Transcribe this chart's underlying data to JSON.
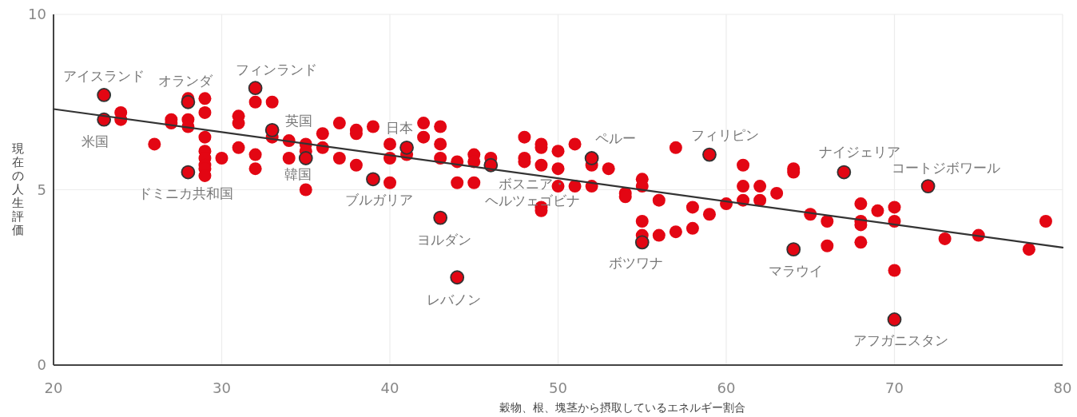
{
  "chart_data": {
    "type": "scatter",
    "xlabel": "穀物、根、塊茎から摂取しているエネルギー割合",
    "ylabel": "現在の人生評価",
    "xlim": [
      20,
      80
    ],
    "ylim": [
      0,
      10
    ],
    "xticks": [
      20,
      30,
      40,
      50,
      60,
      70,
      80
    ],
    "yticks": [
      0,
      5,
      10
    ],
    "grid": true,
    "marker": "circle",
    "series": [
      {
        "color": "#e30613",
        "x": [
          23,
          23,
          24,
          24,
          26,
          27,
          27,
          28,
          28,
          28,
          28,
          28,
          29,
          29,
          29,
          29,
          29,
          29,
          29,
          29,
          30,
          31,
          31,
          31,
          32,
          32,
          32,
          32,
          33,
          33,
          33,
          34,
          34,
          35,
          35,
          35,
          35,
          36,
          36,
          37,
          37,
          38,
          38,
          38,
          39,
          39,
          40,
          40,
          40,
          41,
          41,
          42,
          42,
          43,
          43,
          43,
          43,
          44,
          44,
          44,
          45,
          45,
          45,
          46,
          46,
          48,
          48,
          48,
          49,
          49,
          49,
          49,
          49,
          50,
          50,
          50,
          51,
          51,
          52,
          52,
          52,
          53,
          54,
          54,
          55,
          55,
          55,
          55,
          55,
          56,
          56,
          57,
          57,
          58,
          58,
          59,
          59,
          60,
          61,
          61,
          61,
          62,
          62,
          63,
          64,
          64,
          64,
          65,
          66,
          66,
          67,
          68,
          68,
          68,
          68,
          69,
          70,
          70,
          70,
          70,
          72,
          73,
          75,
          78,
          79
        ],
        "values": [
          7.7,
          7.0,
          7.2,
          7.0,
          6.3,
          7.0,
          6.9,
          7.6,
          7.5,
          7.0,
          6.8,
          5.5,
          7.6,
          7.2,
          6.5,
          6.1,
          5.9,
          5.7,
          5.6,
          5.4,
          5.9,
          7.1,
          6.9,
          6.2,
          7.9,
          7.5,
          6.0,
          5.6,
          7.5,
          6.7,
          6.5,
          6.4,
          5.9,
          6.3,
          6.1,
          5.9,
          5.0,
          6.6,
          6.2,
          6.9,
          5.9,
          6.7,
          6.6,
          5.7,
          6.8,
          5.3,
          6.3,
          5.9,
          5.2,
          6.2,
          6.0,
          6.9,
          6.5,
          6.8,
          6.3,
          5.9,
          4.2,
          5.8,
          5.2,
          2.5,
          6.0,
          5.8,
          5.2,
          5.9,
          5.7,
          6.5,
          5.9,
          5.8,
          6.3,
          6.2,
          5.7,
          4.5,
          4.4,
          6.1,
          5.6,
          5.1,
          6.3,
          5.1,
          5.9,
          5.7,
          5.1,
          5.6,
          4.9,
          4.8,
          5.3,
          5.1,
          4.1,
          3.7,
          3.5,
          4.7,
          3.7,
          6.2,
          3.8,
          4.5,
          3.9,
          6.0,
          4.3,
          4.6,
          5.7,
          5.1,
          4.7,
          5.1,
          4.7,
          4.9,
          5.6,
          5.5,
          3.3,
          4.3,
          4.1,
          3.4,
          5.5,
          4.6,
          4.1,
          4.0,
          3.5,
          4.4,
          4.5,
          4.1,
          2.7,
          1.3,
          5.1,
          3.6,
          3.7,
          3.3,
          4.1
        ]
      },
      {
        "type": "line",
        "color": "#333333",
        "marker": "none",
        "x": [
          20,
          80
        ],
        "values": [
          7.3,
          3.35
        ]
      }
    ],
    "annotations": [
      {
        "text": "アイスランド",
        "x": 23,
        "y": 7.7
      },
      {
        "text": "米国",
        "x": 23,
        "y": 7.0
      },
      {
        "text": "オランダ",
        "x": 28,
        "y": 7.5
      },
      {
        "text": "ドミニカ共和国",
        "x": 28,
        "y": 5.5
      },
      {
        "text": "フィンランド",
        "x": 32,
        "y": 7.9
      },
      {
        "text": "英国",
        "x": 33,
        "y": 6.7
      },
      {
        "text": "韓国",
        "x": 35,
        "y": 5.9
      },
      {
        "text": "ブルガリア",
        "x": 39,
        "y": 5.3
      },
      {
        "text": "日本",
        "x": 41,
        "y": 6.2
      },
      {
        "text": "ヨルダン",
        "x": 43,
        "y": 4.2
      },
      {
        "text": "レバノン",
        "x": 44,
        "y": 2.5
      },
      {
        "text": "ボスニア・ヘルツェゴビナ",
        "x": 46,
        "y": 5.7
      },
      {
        "text": "ペルー",
        "x": 52,
        "y": 5.9
      },
      {
        "text": "ボツワナ",
        "x": 55,
        "y": 3.5
      },
      {
        "text": "フィリピン",
        "x": 59,
        "y": 6.0
      },
      {
        "text": "マラウイ",
        "x": 64,
        "y": 3.3
      },
      {
        "text": "ナイジェリア",
        "x": 67,
        "y": 5.5
      },
      {
        "text": "コートジボワール",
        "x": 72,
        "y": 5.1
      },
      {
        "text": "アフガニスタン",
        "x": 70,
        "y": 1.3
      }
    ]
  }
}
